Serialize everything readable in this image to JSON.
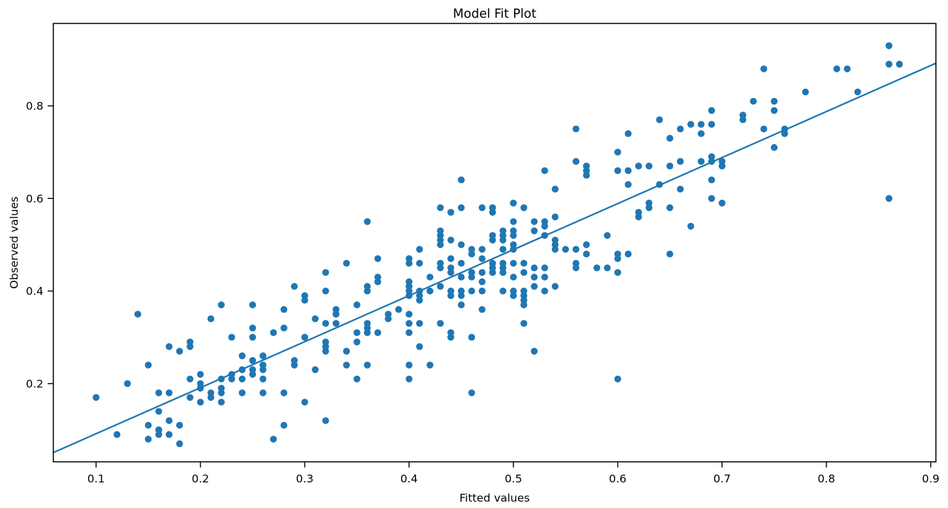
{
  "figure": {
    "title": "Model Fit Plot",
    "xlabel": "Fitted values",
    "ylabel": "Observed values"
  },
  "chart_data": {
    "type": "scatter",
    "title": "Model Fit Plot",
    "xlabel": "Fitted values",
    "ylabel": "Observed values",
    "xlim": [
      0.059,
      0.905
    ],
    "ylim": [
      0.031,
      0.978
    ],
    "x_ticks": [
      0.1,
      0.2,
      0.3,
      0.4,
      0.5,
      0.6,
      0.7,
      0.8,
      0.9
    ],
    "y_ticks": [
      0.2,
      0.4,
      0.6,
      0.8
    ],
    "grid": false,
    "legend": null,
    "marker_color": "#1f77b4",
    "marker_radius": 4.8,
    "line_color": "#1f77b4",
    "line_width": 2.3,
    "fit_line": {
      "x": [
        0.059,
        0.905
      ],
      "y": [
        0.051,
        0.892
      ]
    },
    "points": [
      [
        0.1,
        0.17
      ],
      [
        0.12,
        0.09
      ],
      [
        0.13,
        0.2
      ],
      [
        0.14,
        0.35
      ],
      [
        0.15,
        0.24
      ],
      [
        0.15,
        0.11
      ],
      [
        0.15,
        0.08
      ],
      [
        0.16,
        0.1
      ],
      [
        0.16,
        0.09
      ],
      [
        0.16,
        0.14
      ],
      [
        0.16,
        0.1
      ],
      [
        0.17,
        0.09
      ],
      [
        0.17,
        0.12
      ],
      [
        0.18,
        0.11
      ],
      [
        0.18,
        0.07
      ],
      [
        0.16,
        0.18
      ],
      [
        0.17,
        0.18
      ],
      [
        0.19,
        0.21
      ],
      [
        0.19,
        0.17
      ],
      [
        0.2,
        0.16
      ],
      [
        0.2,
        0.19
      ],
      [
        0.21,
        0.18
      ],
      [
        0.21,
        0.17
      ],
      [
        0.22,
        0.16
      ],
      [
        0.22,
        0.19
      ],
      [
        0.22,
        0.18
      ],
      [
        0.24,
        0.21
      ],
      [
        0.26,
        0.21
      ],
      [
        0.24,
        0.18
      ],
      [
        0.26,
        0.18
      ],
      [
        0.28,
        0.18
      ],
      [
        0.28,
        0.11
      ],
      [
        0.27,
        0.08
      ],
      [
        0.3,
        0.16
      ],
      [
        0.32,
        0.12
      ],
      [
        0.2,
        0.22
      ],
      [
        0.2,
        0.2
      ],
      [
        0.22,
        0.21
      ],
      [
        0.23,
        0.22
      ],
      [
        0.23,
        0.21
      ],
      [
        0.22,
        0.37
      ],
      [
        0.25,
        0.37
      ],
      [
        0.21,
        0.34
      ],
      [
        0.28,
        0.36
      ],
      [
        0.33,
        0.36
      ],
      [
        0.33,
        0.35
      ],
      [
        0.31,
        0.34
      ],
      [
        0.32,
        0.33
      ],
      [
        0.33,
        0.33
      ],
      [
        0.25,
        0.32
      ],
      [
        0.25,
        0.3
      ],
      [
        0.27,
        0.31
      ],
      [
        0.28,
        0.32
      ],
      [
        0.3,
        0.3
      ],
      [
        0.32,
        0.29
      ],
      [
        0.32,
        0.27
      ],
      [
        0.32,
        0.28
      ],
      [
        0.23,
        0.3
      ],
      [
        0.19,
        0.29
      ],
      [
        0.19,
        0.28
      ],
      [
        0.17,
        0.28
      ],
      [
        0.18,
        0.27
      ],
      [
        0.25,
        0.25
      ],
      [
        0.26,
        0.26
      ],
      [
        0.24,
        0.26
      ],
      [
        0.24,
        0.23
      ],
      [
        0.25,
        0.22
      ],
      [
        0.25,
        0.23
      ],
      [
        0.26,
        0.23
      ],
      [
        0.26,
        0.24
      ],
      [
        0.29,
        0.25
      ],
      [
        0.29,
        0.24
      ],
      [
        0.31,
        0.23
      ],
      [
        0.29,
        0.41
      ],
      [
        0.32,
        0.44
      ],
      [
        0.32,
        0.4
      ],
      [
        0.3,
        0.38
      ],
      [
        0.3,
        0.39
      ],
      [
        0.34,
        0.46
      ],
      [
        0.34,
        0.27
      ],
      [
        0.34,
        0.24
      ],
      [
        0.36,
        0.55
      ],
      [
        0.45,
        0.64
      ],
      [
        0.53,
        0.66
      ],
      [
        0.56,
        0.75
      ],
      [
        0.56,
        0.68
      ],
      [
        0.57,
        0.67
      ],
      [
        0.57,
        0.66
      ],
      [
        0.57,
        0.65
      ],
      [
        0.6,
        0.7
      ],
      [
        0.6,
        0.66
      ],
      [
        0.61,
        0.66
      ],
      [
        0.61,
        0.74
      ],
      [
        0.61,
        0.63
      ],
      [
        0.54,
        0.62
      ],
      [
        0.54,
        0.56
      ],
      [
        0.53,
        0.55
      ],
      [
        0.53,
        0.54
      ],
      [
        0.52,
        0.55
      ],
      [
        0.52,
        0.53
      ],
      [
        0.51,
        0.58
      ],
      [
        0.5,
        0.59
      ],
      [
        0.5,
        0.55
      ],
      [
        0.49,
        0.53
      ],
      [
        0.49,
        0.52
      ],
      [
        0.48,
        0.52
      ],
      [
        0.48,
        0.51
      ],
      [
        0.49,
        0.51
      ],
      [
        0.5,
        0.53
      ],
      [
        0.5,
        0.52
      ],
      [
        0.48,
        0.57
      ],
      [
        0.47,
        0.58
      ],
      [
        0.48,
        0.58
      ],
      [
        0.45,
        0.58
      ],
      [
        0.44,
        0.57
      ],
      [
        0.43,
        0.58
      ],
      [
        0.43,
        0.53
      ],
      [
        0.43,
        0.51
      ],
      [
        0.43,
        0.52
      ],
      [
        0.44,
        0.51
      ],
      [
        0.62,
        0.56
      ],
      [
        0.62,
        0.57
      ],
      [
        0.41,
        0.49
      ],
      [
        0.43,
        0.5
      ],
      [
        0.45,
        0.5
      ],
      [
        0.46,
        0.49
      ],
      [
        0.46,
        0.48
      ],
      [
        0.47,
        0.49
      ],
      [
        0.49,
        0.49
      ],
      [
        0.5,
        0.5
      ],
      [
        0.5,
        0.49
      ],
      [
        0.53,
        0.52
      ],
      [
        0.54,
        0.51
      ],
      [
        0.54,
        0.5
      ],
      [
        0.54,
        0.49
      ],
      [
        0.55,
        0.49
      ],
      [
        0.56,
        0.49
      ],
      [
        0.57,
        0.5
      ],
      [
        0.57,
        0.48
      ],
      [
        0.59,
        0.52
      ],
      [
        0.6,
        0.48
      ],
      [
        0.6,
        0.47
      ],
      [
        0.61,
        0.48
      ],
      [
        0.37,
        0.47
      ],
      [
        0.4,
        0.47
      ],
      [
        0.4,
        0.46
      ],
      [
        0.41,
        0.46
      ],
      [
        0.43,
        0.45
      ],
      [
        0.43,
        0.46
      ],
      [
        0.44,
        0.47
      ],
      [
        0.44,
        0.45
      ],
      [
        0.44,
        0.44
      ],
      [
        0.45,
        0.46
      ],
      [
        0.45,
        0.43
      ],
      [
        0.46,
        0.43
      ],
      [
        0.46,
        0.44
      ],
      [
        0.47,
        0.44
      ],
      [
        0.47,
        0.47
      ],
      [
        0.48,
        0.46
      ],
      [
        0.48,
        0.45
      ],
      [
        0.48,
        0.44
      ],
      [
        0.49,
        0.44
      ],
      [
        0.49,
        0.45
      ],
      [
        0.49,
        0.46
      ],
      [
        0.5,
        0.43
      ],
      [
        0.5,
        0.46
      ],
      [
        0.51,
        0.44
      ],
      [
        0.51,
        0.46
      ],
      [
        0.52,
        0.43
      ],
      [
        0.52,
        0.45
      ],
      [
        0.53,
        0.43
      ],
      [
        0.53,
        0.45
      ],
      [
        0.56,
        0.46
      ],
      [
        0.56,
        0.45
      ],
      [
        0.58,
        0.45
      ],
      [
        0.59,
        0.45
      ],
      [
        0.6,
        0.44
      ],
      [
        0.37,
        0.42
      ],
      [
        0.37,
        0.43
      ],
      [
        0.36,
        0.4
      ],
      [
        0.36,
        0.41
      ],
      [
        0.42,
        0.43
      ],
      [
        0.4,
        0.42
      ],
      [
        0.4,
        0.41
      ],
      [
        0.4,
        0.4
      ],
      [
        0.4,
        0.39
      ],
      [
        0.41,
        0.4
      ],
      [
        0.43,
        0.41
      ],
      [
        0.42,
        0.4
      ],
      [
        0.44,
        0.4
      ],
      [
        0.44,
        0.39
      ],
      [
        0.45,
        0.4
      ],
      [
        0.45,
        0.39
      ],
      [
        0.46,
        0.4
      ],
      [
        0.47,
        0.42
      ],
      [
        0.47,
        0.4
      ],
      [
        0.49,
        0.4
      ],
      [
        0.5,
        0.4
      ],
      [
        0.5,
        0.39
      ],
      [
        0.51,
        0.4
      ],
      [
        0.51,
        0.39
      ],
      [
        0.51,
        0.38
      ],
      [
        0.51,
        0.37
      ],
      [
        0.52,
        0.41
      ],
      [
        0.53,
        0.4
      ],
      [
        0.54,
        0.41
      ],
      [
        0.41,
        0.39
      ],
      [
        0.41,
        0.38
      ],
      [
        0.45,
        0.37
      ],
      [
        0.47,
        0.36
      ],
      [
        0.35,
        0.37
      ],
      [
        0.38,
        0.35
      ],
      [
        0.38,
        0.34
      ],
      [
        0.39,
        0.36
      ],
      [
        0.4,
        0.35
      ],
      [
        0.36,
        0.33
      ],
      [
        0.35,
        0.31
      ],
      [
        0.36,
        0.31
      ],
      [
        0.36,
        0.32
      ],
      [
        0.37,
        0.31
      ],
      [
        0.35,
        0.29
      ],
      [
        0.4,
        0.33
      ],
      [
        0.41,
        0.33
      ],
      [
        0.4,
        0.31
      ],
      [
        0.43,
        0.33
      ],
      [
        0.44,
        0.31
      ],
      [
        0.44,
        0.3
      ],
      [
        0.46,
        0.3
      ],
      [
        0.51,
        0.33
      ],
      [
        0.52,
        0.27
      ],
      [
        0.41,
        0.28
      ],
      [
        0.4,
        0.24
      ],
      [
        0.42,
        0.24
      ],
      [
        0.4,
        0.21
      ],
      [
        0.36,
        0.24
      ],
      [
        0.35,
        0.21
      ],
      [
        0.46,
        0.18
      ],
      [
        0.6,
        0.21
      ],
      [
        0.86,
        0.93
      ],
      [
        0.86,
        0.89
      ],
      [
        0.87,
        0.89
      ],
      [
        0.74,
        0.88
      ],
      [
        0.81,
        0.88
      ],
      [
        0.82,
        0.88
      ],
      [
        0.78,
        0.83
      ],
      [
        0.83,
        0.83
      ],
      [
        0.73,
        0.81
      ],
      [
        0.75,
        0.81
      ],
      [
        0.69,
        0.79
      ],
      [
        0.75,
        0.79
      ],
      [
        0.64,
        0.77
      ],
      [
        0.72,
        0.77
      ],
      [
        0.72,
        0.78
      ],
      [
        0.67,
        0.76
      ],
      [
        0.68,
        0.76
      ],
      [
        0.69,
        0.76
      ],
      [
        0.66,
        0.75
      ],
      [
        0.65,
        0.73
      ],
      [
        0.68,
        0.74
      ],
      [
        0.74,
        0.75
      ],
      [
        0.75,
        0.71
      ],
      [
        0.76,
        0.75
      ],
      [
        0.76,
        0.74
      ],
      [
        0.62,
        0.67
      ],
      [
        0.63,
        0.67
      ],
      [
        0.65,
        0.67
      ],
      [
        0.66,
        0.68
      ],
      [
        0.69,
        0.69
      ],
      [
        0.68,
        0.68
      ],
      [
        0.69,
        0.68
      ],
      [
        0.7,
        0.68
      ],
      [
        0.7,
        0.67
      ],
      [
        0.64,
        0.63
      ],
      [
        0.66,
        0.62
      ],
      [
        0.69,
        0.64
      ],
      [
        0.69,
        0.6
      ],
      [
        0.7,
        0.59
      ],
      [
        0.63,
        0.59
      ],
      [
        0.63,
        0.58
      ],
      [
        0.65,
        0.58
      ],
      [
        0.67,
        0.54
      ],
      [
        0.86,
        0.6
      ],
      [
        0.65,
        0.48
      ]
    ]
  }
}
